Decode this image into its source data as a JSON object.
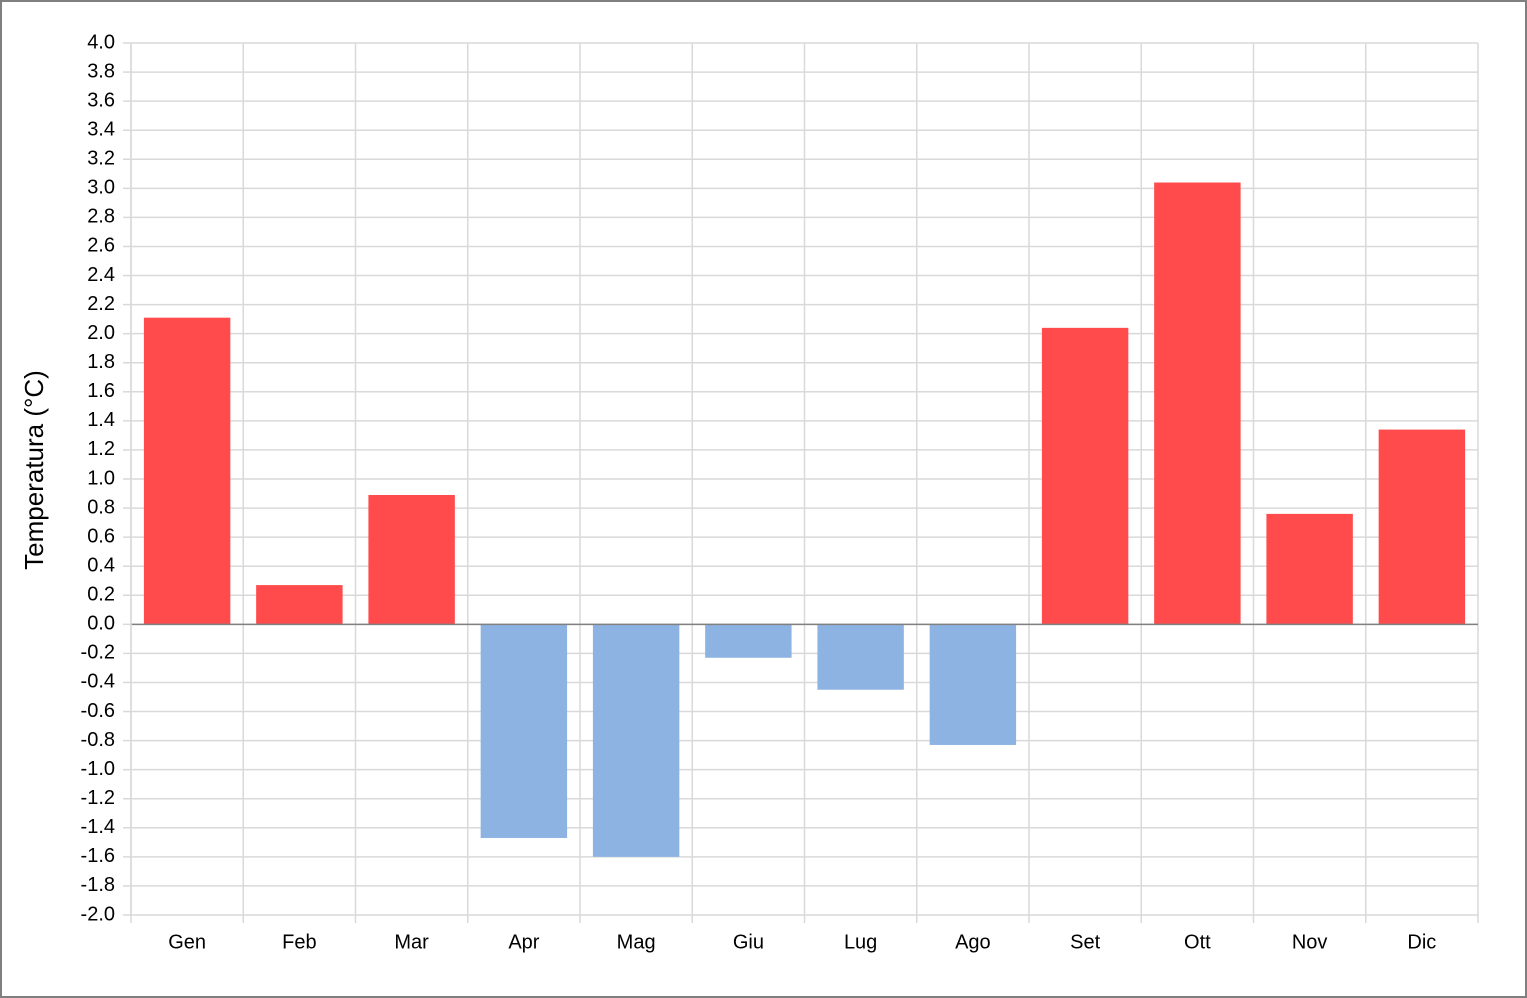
{
  "chart_data": {
    "type": "bar",
    "y_label": "Temperatura  (°C)",
    "categories": [
      "Gen",
      "Feb",
      "Mar",
      "Apr",
      "Mag",
      "Giu",
      "Lug",
      "Ago",
      "Set",
      "Ott",
      "Nov",
      "Dic"
    ],
    "values": [
      2.11,
      0.27,
      0.89,
      -1.47,
      -1.6,
      -0.23,
      -0.45,
      -0.83,
      2.04,
      3.04,
      0.76,
      1.34
    ],
    "positive_color": "#ff4b4b",
    "negative_color": "#8db3e2",
    "ylim": [
      -2,
      4
    ],
    "yticks": [
      {
        "value": -2,
        "label": "-2.0"
      },
      -1.8,
      -1.6,
      -1.4,
      -1.2,
      {
        "value": -1,
        "label": "-1.0"
      },
      -0.8,
      -0.6,
      -0.4,
      -0.2,
      {
        "value": 0,
        "label": "0.0"
      },
      0.2,
      0.4,
      0.6,
      0.8,
      {
        "value": 1,
        "label": "1.0"
      },
      1.2,
      1.4,
      1.6,
      1.8,
      {
        "value": 2,
        "label": "2.0"
      },
      2.2,
      2.4,
      2.6,
      2.8,
      {
        "value": 3,
        "label": "3.0"
      },
      3.2,
      3.4,
      3.6,
      3.8,
      {
        "value": 4,
        "label": "4.0"
      }
    ],
    "grid": true
  }
}
